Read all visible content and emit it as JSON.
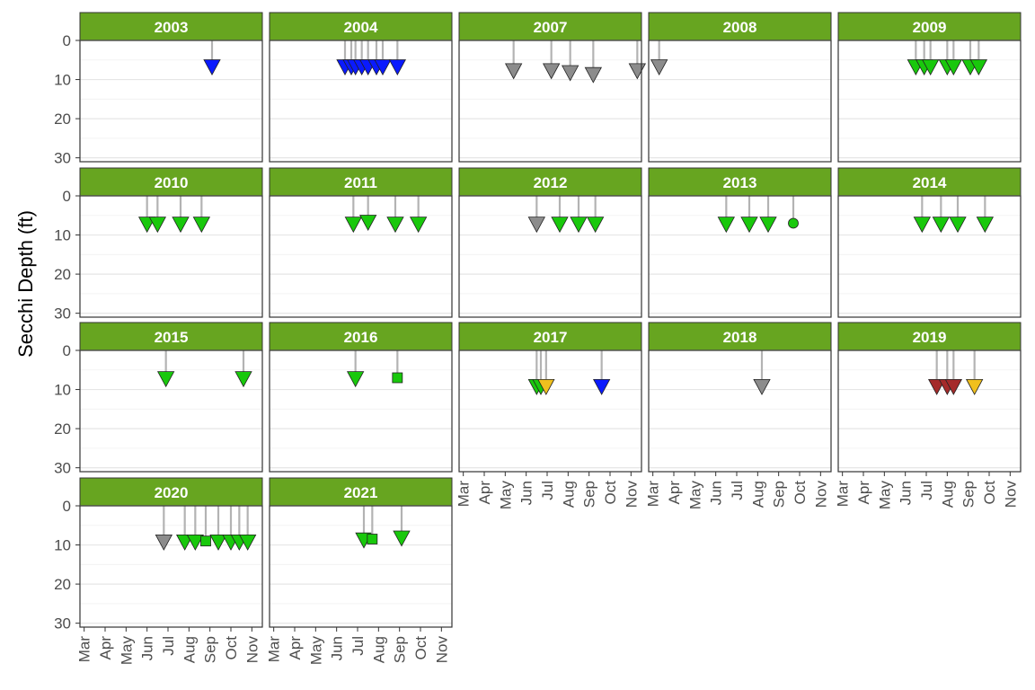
{
  "chart_data": {
    "type": "scatter",
    "title": "",
    "xlabel": "",
    "ylabel": "Secchi Depth (ft)",
    "y_reversed": true,
    "ylim": [
      0,
      31
    ],
    "yticks": [
      0,
      10,
      20,
      30
    ],
    "xlim": [
      2.8,
      11.5
    ],
    "months": [
      "Mar",
      "Apr",
      "May",
      "Jun",
      "Jul",
      "Aug",
      "Sep",
      "Oct",
      "Nov"
    ],
    "grid": true,
    "facet_strip_color": "#67a520",
    "marker_colors": {
      "green": "#19c80c",
      "blue": "#0a1aff",
      "gray": "#8c8c8c",
      "yellow": "#f0c01e",
      "darkred": "#a52a2a",
      "stem": "#b3b3b3"
    },
    "panels": [
      {
        "year": "2003",
        "points": [
          [
            9.1,
            7,
            "blue",
            "tri"
          ]
        ]
      },
      {
        "year": "2004",
        "points": [
          [
            6.4,
            7,
            "blue",
            "tri"
          ],
          [
            6.7,
            7,
            "blue",
            "tri"
          ],
          [
            6.9,
            7,
            "blue",
            "tri"
          ],
          [
            7.2,
            7,
            "blue",
            "tri"
          ],
          [
            7.5,
            7,
            "blue",
            "tri"
          ],
          [
            7.9,
            7,
            "blue",
            "tri"
          ],
          [
            8.2,
            7,
            "blue",
            "tri"
          ],
          [
            8.9,
            7,
            "blue",
            "tri"
          ]
        ]
      },
      {
        "year": "2007",
        "points": [
          [
            5.4,
            8,
            "gray",
            "tri"
          ],
          [
            7.2,
            8,
            "gray",
            "tri"
          ],
          [
            8.1,
            8.5,
            "gray",
            "tri"
          ],
          [
            9.2,
            9,
            "gray",
            "tri"
          ],
          [
            11.3,
            8,
            "gray",
            "tri"
          ]
        ]
      },
      {
        "year": "2008",
        "points": [
          [
            3.3,
            7,
            "gray",
            "tri"
          ]
        ]
      },
      {
        "year": "2009",
        "points": [
          [
            6.5,
            7,
            "green",
            "tri"
          ],
          [
            6.9,
            7,
            "green",
            "tri"
          ],
          [
            7.2,
            7,
            "green",
            "tri"
          ],
          [
            8.0,
            7,
            "green",
            "tri"
          ],
          [
            8.3,
            7,
            "green",
            "tri"
          ],
          [
            9.1,
            7,
            "green",
            "tri"
          ],
          [
            9.5,
            7,
            "green",
            "tri"
          ]
        ]
      },
      {
        "year": "2010",
        "points": [
          [
            6.0,
            7.5,
            "green",
            "tri"
          ],
          [
            6.5,
            7.5,
            "green",
            "tri"
          ],
          [
            7.6,
            7.5,
            "green",
            "tri"
          ],
          [
            8.6,
            7.5,
            "green",
            "tri"
          ]
        ]
      },
      {
        "year": "2011",
        "points": [
          [
            6.8,
            7.5,
            "green",
            "tri"
          ],
          [
            7.5,
            7,
            "green",
            "tri"
          ],
          [
            8.8,
            7.5,
            "green",
            "tri"
          ],
          [
            9.9,
            7.5,
            "green",
            "tri"
          ]
        ]
      },
      {
        "year": "2012",
        "points": [
          [
            6.5,
            7.5,
            "gray",
            "tri"
          ],
          [
            7.6,
            7.5,
            "green",
            "tri"
          ],
          [
            8.5,
            7.5,
            "green",
            "tri"
          ],
          [
            9.3,
            7.5,
            "green",
            "tri"
          ]
        ]
      },
      {
        "year": "2013",
        "points": [
          [
            6.5,
            7.5,
            "green",
            "tri"
          ],
          [
            7.6,
            7.5,
            "green",
            "tri"
          ],
          [
            8.5,
            7.5,
            "green",
            "tri"
          ],
          [
            9.7,
            7,
            "green",
            "circle"
          ]
        ]
      },
      {
        "year": "2014",
        "points": [
          [
            6.8,
            7.5,
            "green",
            "tri"
          ],
          [
            7.7,
            7.5,
            "green",
            "tri"
          ],
          [
            8.5,
            7.5,
            "green",
            "tri"
          ],
          [
            9.8,
            7.5,
            "green",
            "tri"
          ]
        ]
      },
      {
        "year": "2015",
        "points": [
          [
            6.9,
            7.5,
            "green",
            "tri"
          ],
          [
            10.6,
            7.5,
            "green",
            "tri"
          ]
        ]
      },
      {
        "year": "2016",
        "points": [
          [
            6.9,
            7.5,
            "green",
            "tri"
          ],
          [
            8.9,
            7,
            "green",
            "square"
          ]
        ]
      },
      {
        "year": "2017",
        "points": [
          [
            6.5,
            9.5,
            "green",
            "tri"
          ],
          [
            6.7,
            9.5,
            "green",
            "tri"
          ],
          [
            6.95,
            9.5,
            "yellow",
            "tri"
          ],
          [
            9.6,
            9.5,
            "blue",
            "tri"
          ]
        ]
      },
      {
        "year": "2018",
        "points": [
          [
            8.2,
            9.5,
            "gray",
            "tri"
          ]
        ]
      },
      {
        "year": "2019",
        "points": [
          [
            7.5,
            9.5,
            "darkred",
            "tri"
          ],
          [
            8.0,
            9.5,
            "darkred",
            "tri"
          ],
          [
            8.3,
            9.5,
            "darkred",
            "tri"
          ],
          [
            9.3,
            9.5,
            "yellow",
            "tri"
          ]
        ]
      },
      {
        "year": "2020",
        "points": [
          [
            6.8,
            9.5,
            "gray",
            "tri"
          ],
          [
            7.8,
            9.5,
            "green",
            "tri"
          ],
          [
            8.3,
            9.5,
            "green",
            "tri"
          ],
          [
            8.8,
            9,
            "green",
            "square"
          ],
          [
            9.4,
            9.5,
            "green",
            "tri"
          ],
          [
            10.0,
            9.5,
            "green",
            "tri"
          ],
          [
            10.4,
            9.5,
            "green",
            "tri"
          ],
          [
            10.8,
            9.5,
            "green",
            "tri"
          ]
        ]
      },
      {
        "year": "2021",
        "points": [
          [
            7.3,
            9,
            "green",
            "tri"
          ],
          [
            7.7,
            8.5,
            "green",
            "square"
          ],
          [
            9.1,
            8.5,
            "green",
            "tri"
          ]
        ]
      }
    ]
  }
}
